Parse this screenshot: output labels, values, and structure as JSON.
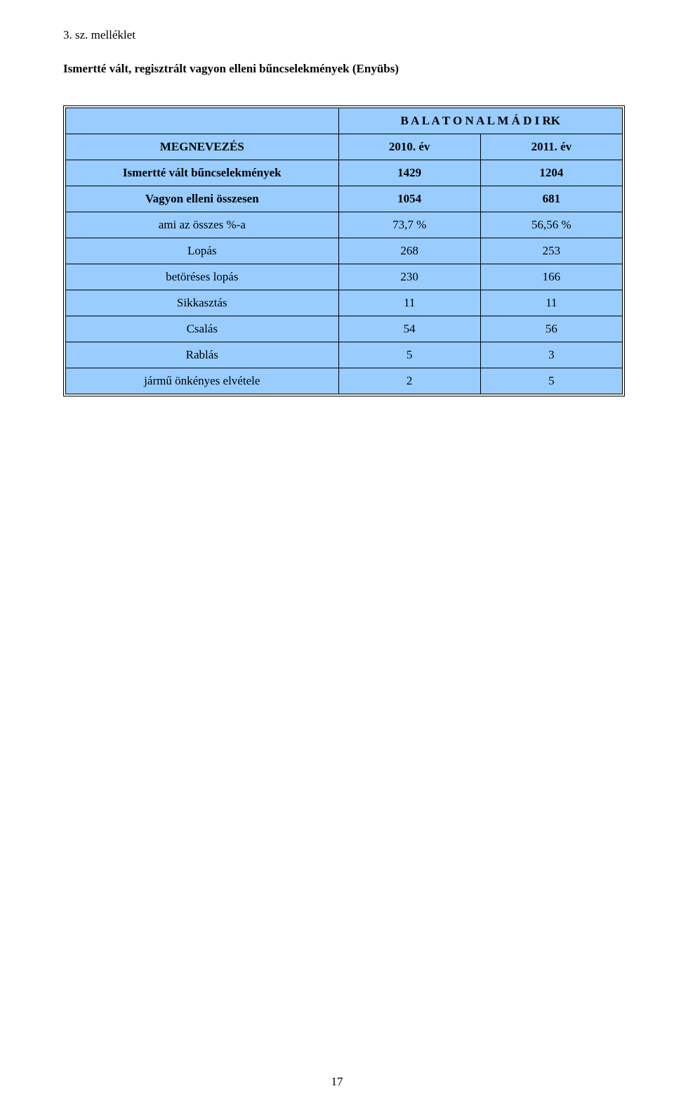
{
  "attachment_label": "3. sz. melléklet",
  "title": "Ismertté vált, regisztrált vagyon elleni bűncselekmények (Enyübs)",
  "table": {
    "background_color": "#99ccff",
    "border_color": "#000000",
    "super_header": "B A L A T O N A L M Á D I  RK",
    "header_label": "MEGNEVEZÉS",
    "year_cols": [
      "2010. év",
      "2011. év"
    ],
    "rows": [
      {
        "label": "Ismertté vált bűncselekmények",
        "v1": "1429",
        "v2": "1204",
        "bold": true
      },
      {
        "label": "Vagyon elleni összesen",
        "v1": "1054",
        "v2": "681",
        "bold": true
      },
      {
        "label": "ami az összes %-a",
        "v1": "73,7 %",
        "v2": "56,56 %",
        "bold": false
      },
      {
        "label": "Lopás",
        "v1": "268",
        "v2": "253",
        "bold": false
      },
      {
        "label": "betöréses lopás",
        "v1": "230",
        "v2": "166",
        "bold": false
      },
      {
        "label": "Sikkasztás",
        "v1": "11",
        "v2": "11",
        "bold": false
      },
      {
        "label": "Csalás",
        "v1": "54",
        "v2": "56",
        "bold": false
      },
      {
        "label": "Rablás",
        "v1": "5",
        "v2": "3",
        "bold": false
      },
      {
        "label": "jármű önkényes elvétele",
        "v1": "2",
        "v2": "5",
        "bold": false
      }
    ]
  },
  "page_number": "17",
  "fonts": {
    "body_pt": 17,
    "family": "Times New Roman"
  }
}
